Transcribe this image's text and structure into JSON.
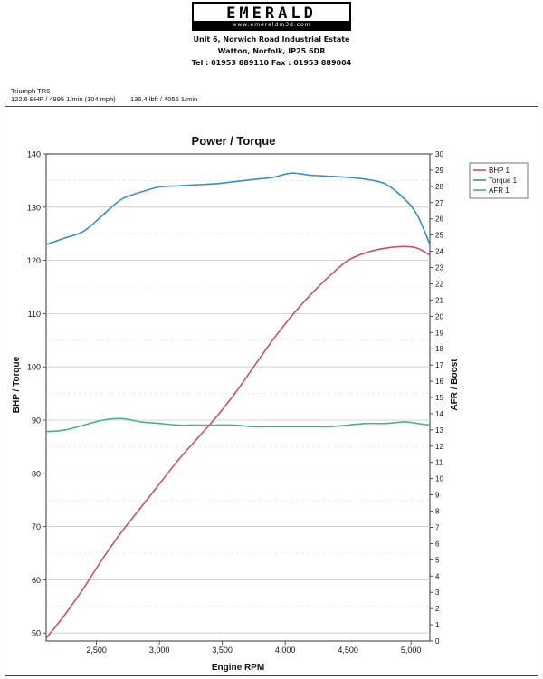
{
  "header": {
    "logo_text": "EMERALD",
    "logo_url": "www.emeraldm3d.com",
    "address_line1": "Unit 6, Norwich Road Industrial Estate",
    "address_line2": "Watton, Norfolk, IP25 6DR",
    "contact": "Tel : 01953 889110    Fax : 01953 889004"
  },
  "run": {
    "vehicle": "Triumph TR6",
    "peak_power": "122.6 BHP / 4995 1/min (104 mph)",
    "peak_torque": "136.4 lbft / 4055 1/min"
  },
  "chart_data": {
    "type": "line",
    "title": "Power / Torque",
    "xlabel": "Engine RPM",
    "ylabel_left": "BHP / Torque",
    "ylabel_right": "AFR / Boost",
    "xlim": [
      2100,
      5150
    ],
    "ylim_left": [
      48.5,
      140
    ],
    "ylim_right": [
      0,
      30
    ],
    "x_ticks": [
      "2,500",
      "3,000",
      "3,500",
      "4,000",
      "4,500",
      "5,000"
    ],
    "x_tick_values": [
      2500,
      3000,
      3500,
      4000,
      4500,
      5000
    ],
    "y_ticks_left": [
      50,
      60,
      70,
      80,
      90,
      100,
      110,
      120,
      130,
      140
    ],
    "y_ticks_right": [
      0,
      1,
      2,
      3,
      4,
      5,
      6,
      7,
      8,
      9,
      10,
      11,
      12,
      13,
      14,
      15,
      16,
      17,
      18,
      19,
      20,
      21,
      22,
      23,
      24,
      25,
      26,
      27,
      28,
      29,
      30
    ],
    "grid": "horizontal major, dashed minor",
    "legend_position": "top-right, outside plot",
    "legend": [
      "BHP 1",
      "Torque 1",
      "AFR 1"
    ],
    "series": [
      {
        "name": "BHP 1",
        "axis": "left",
        "color": "#c8506e",
        "x": [
          2100,
          2250,
          2400,
          2550,
          2700,
          2850,
          3000,
          3150,
          3300,
          3450,
          3600,
          3750,
          3900,
          4050,
          4200,
          4350,
          4500,
          4650,
          4800,
          4950,
          5050,
          5150
        ],
        "y": [
          49,
          53.5,
          58.5,
          64,
          69,
          73.5,
          78,
          82.5,
          86.5,
          90.5,
          95,
          100,
          105,
          109.5,
          113.5,
          117,
          120,
          121.5,
          122.3,
          122.6,
          122.3,
          121
        ]
      },
      {
        "name": "Torque 1",
        "axis": "left",
        "color": "#3a8fc0",
        "x": [
          2100,
          2250,
          2400,
          2550,
          2700,
          2850,
          3000,
          3150,
          3300,
          3450,
          3600,
          3750,
          3900,
          4050,
          4200,
          4350,
          4500,
          4650,
          4800,
          4950,
          5050,
          5150
        ],
        "y": [
          123,
          124.2,
          125.5,
          128.5,
          131.5,
          132.8,
          133.8,
          134,
          134.2,
          134.4,
          134.8,
          135.2,
          135.6,
          136.4,
          136,
          135.8,
          135.6,
          135.2,
          134.3,
          131.5,
          128.5,
          123
        ]
      },
      {
        "name": "AFR 1",
        "axis": "right",
        "color": "#44b48a",
        "x": [
          2100,
          2250,
          2400,
          2550,
          2700,
          2850,
          3000,
          3150,
          3300,
          3450,
          3600,
          3750,
          3900,
          4050,
          4200,
          4350,
          4500,
          4650,
          4800,
          4950,
          5050,
          5150
        ],
        "y": [
          12.9,
          13.0,
          13.3,
          13.6,
          13.7,
          13.5,
          13.4,
          13.3,
          13.3,
          13.3,
          13.3,
          13.2,
          13.2,
          13.2,
          13.2,
          13.2,
          13.3,
          13.4,
          13.4,
          13.5,
          13.4,
          13.3
        ]
      }
    ]
  }
}
